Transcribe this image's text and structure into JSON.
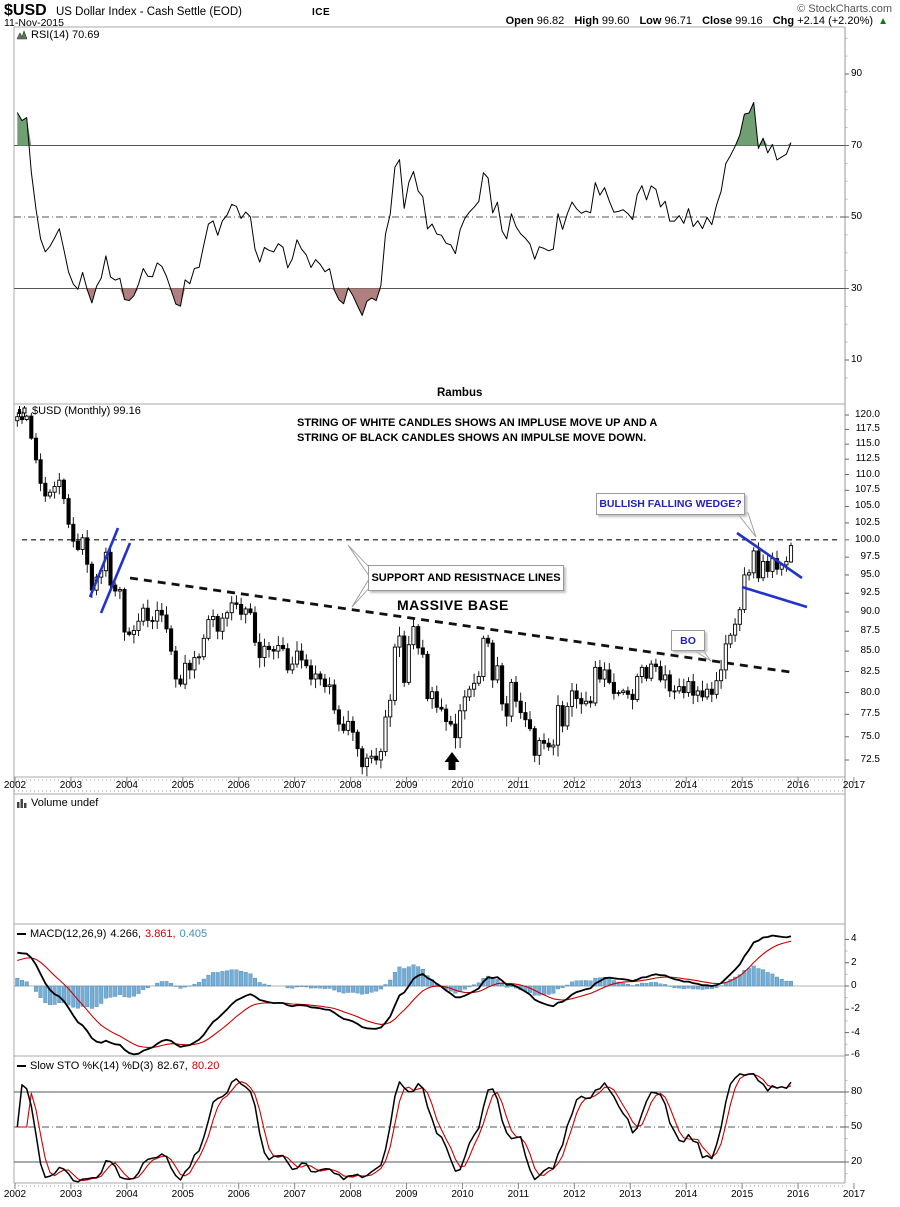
{
  "header": {
    "symbol": "$USD",
    "title": "US Dollar Index - Cash Settle (EOD)",
    "exchange": "ICE",
    "date": "11-Nov-2015",
    "copyright": "© StockCharts.com",
    "quote": {
      "open_label": "Open",
      "open": "96.82",
      "high_label": "High",
      "high": "99.60",
      "low_label": "Low",
      "low": "96.71",
      "close_label": "Close",
      "close": "99.16",
      "chg_label": "Chg",
      "chg": "+2.14 (+2.20%)",
      "direction_icon": "▲"
    }
  },
  "watermark": "Rambus",
  "annotations": {
    "impulse_line1": "STRING OF WHITE CANDLES SHOWS AN IMPLUSE MOVE UP AND A",
    "impulse_line2": "STRING OF BLACK CANDLES SHOWS AN IMPULSE MOVE DOWN.",
    "falling_wedge": "BULLISH FALLING WEDGE?",
    "support_resistance": "SUPPORT AND RESISTNACE LINES",
    "massive_base": "MASSIVE BASE",
    "breakout": "BO"
  },
  "colors": {
    "overbought_fill": "#6f9f72",
    "oversold_fill": "#b08080",
    "macd_hist_fill": "#74aed6",
    "macd_hist_edge": "#4d85ad",
    "macd_line": "#000000",
    "macd_signal": "#cc0000",
    "sto_k": "#000000",
    "sto_d": "#cc0000",
    "annotation_blue": "#2233cc",
    "chg_up_green": "#0a7d0a"
  },
  "chart_data": {
    "type": "candlestick+indicators",
    "x_axis": {
      "tick_labels": [
        "2002",
        "2003",
        "2004",
        "2005",
        "2006",
        "2007",
        "2008",
        "2009",
        "2010",
        "2011",
        "2012",
        "2013",
        "2014",
        "2015",
        "2016",
        "2017"
      ],
      "start_year": 2002,
      "months": 167
    },
    "rsi_panel": {
      "type": "line",
      "label": "RSI(14) 70.69",
      "period": 14,
      "current_value": 70.69,
      "y_ticks": [
        90,
        70,
        50,
        30,
        10
      ],
      "overbought_level": 70,
      "mid_level": 50,
      "oversold_level": 30,
      "derived_from": "monthly_closes"
    },
    "price_panel": {
      "type": "candlestick",
      "label": "$USD (Monthly) 99.16",
      "scale": "log",
      "y_ticks": [
        120.0,
        117.5,
        115.0,
        112.5,
        110.0,
        107.5,
        105.0,
        102.5,
        100.0,
        97.5,
        95.0,
        92.5,
        90.0,
        87.5,
        85.0,
        82.5,
        80.0,
        77.5,
        75.0,
        72.5
      ],
      "resistance_line_price": 100.0,
      "monthly_closes": [
        119.7,
        119.2,
        119.8,
        116.0,
        112.4,
        108.6,
        106.6,
        107.2,
        108.1,
        109.1,
        106.2,
        102.3,
        99.8,
        98.6,
        100.3,
        96.5,
        92.9,
        94.7,
        95.6,
        98.2,
        93.6,
        92.8,
        93.0,
        87.4,
        87.1,
        87.6,
        88.8,
        90.5,
        88.9,
        88.8,
        90.2,
        89.6,
        87.8,
        85.0,
        81.6,
        81.0,
        83.5,
        82.7,
        84.2,
        84.3,
        86.6,
        89.0,
        89.4,
        87.5,
        89.2,
        89.9,
        91.2,
        91.0,
        89.7,
        90.4,
        89.9,
        86.1,
        84.2,
        85.6,
        85.2,
        85.0,
        85.7,
        85.3,
        82.7,
        83.4,
        85.0,
        83.9,
        83.2,
        81.6,
        82.2,
        81.6,
        80.7,
        80.9,
        78.0,
        76.4,
        75.7,
        76.7,
        75.5,
        73.7,
        71.8,
        72.7,
        72.9,
        72.5,
        73.4,
        77.2,
        79.1,
        85.5,
        86.9,
        81.2,
        85.8,
        88.1,
        85.4,
        84.6,
        79.3,
        80.1,
        78.3,
        78.1,
        76.7,
        76.4,
        74.9,
        77.9,
        79.5,
        80.4,
        81.1,
        81.9,
        86.6,
        86.0,
        81.5,
        83.2,
        78.7,
        77.3,
        81.2,
        79.0,
        77.7,
        76.9,
        75.9,
        73.0,
        74.6,
        74.3,
        73.9,
        74.1,
        78.5,
        76.2,
        78.4,
        80.2,
        79.3,
        78.7,
        79.0,
        78.8,
        83.0,
        81.6,
        82.7,
        81.2,
        79.9,
        80.0,
        80.2,
        79.8,
        79.2,
        81.9,
        83.0,
        81.7,
        83.4,
        83.1,
        81.5,
        82.1,
        80.2,
        80.2,
        80.7,
        80.0,
        81.3,
        79.7,
        80.2,
        79.5,
        80.4,
        79.8,
        81.4,
        82.7,
        85.9,
        87.0,
        88.4,
        90.3,
        95.0,
        95.3,
        98.4,
        94.6,
        96.9,
        95.5,
        97.3,
        95.8,
        96.4,
        96.9,
        99.16
      ],
      "last_candle_ohlc": [
        96.82,
        99.6,
        96.71,
        99.16
      ]
    },
    "volume_panel": {
      "label": "Volume undef"
    },
    "macd_panel": {
      "type": "line+histogram",
      "name": "MACD(12,26,9)",
      "value_macd": "4.266,",
      "value_signal": "3.861,",
      "value_hist": "0.405",
      "y_ticks": [
        4,
        2,
        0,
        -2,
        -4,
        -6
      ],
      "derived_from": "monthly_closes"
    },
    "sto_panel": {
      "type": "line",
      "name": "Slow STO %K(14) %D(3)",
      "value_k": "82.67,",
      "value_d": "80.20",
      "y_ticks": [
        80,
        50,
        20
      ],
      "derived_from": "monthly_closes"
    }
  }
}
